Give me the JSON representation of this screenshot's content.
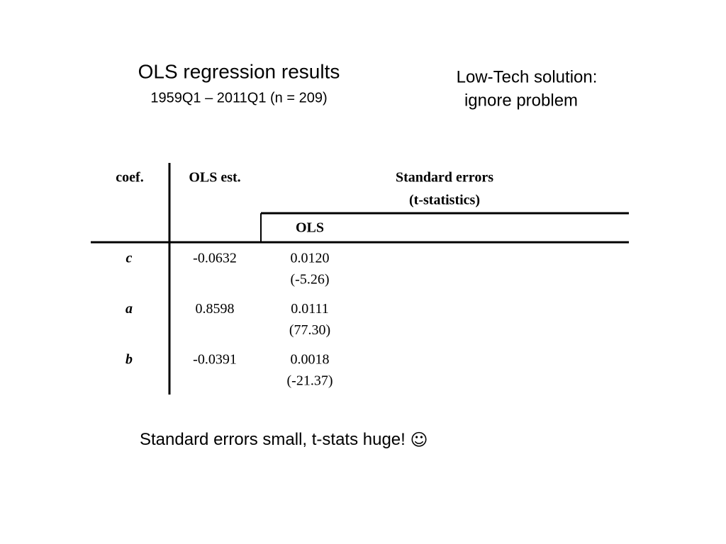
{
  "slide": {
    "title": "OLS regression results",
    "subtitle": "1959Q1 – 2011Q1 (n = 209)",
    "note": [
      "Low-Tech solution:",
      "ignore problem"
    ],
    "table": {
      "header": {
        "coef": "coef.",
        "estimate": "OLS est.",
        "group": [
          "Standard errors",
          "(t-statistics)"
        ],
        "sub": "OLS"
      },
      "rows": [
        {
          "coef": "c",
          "estimate": "-0.0632",
          "se": "0.0120",
          "t": "(-5.26)"
        },
        {
          "coef": "a",
          "estimate": "0.8598",
          "se": "0.0111",
          "t": "(77.30)"
        },
        {
          "coef": "b",
          "estimate": "-0.0391",
          "se": "0.0018",
          "t": "(-21.37)"
        }
      ]
    },
    "footer": "Standard errors small, t-stats huge!",
    "smiley": "☺"
  }
}
